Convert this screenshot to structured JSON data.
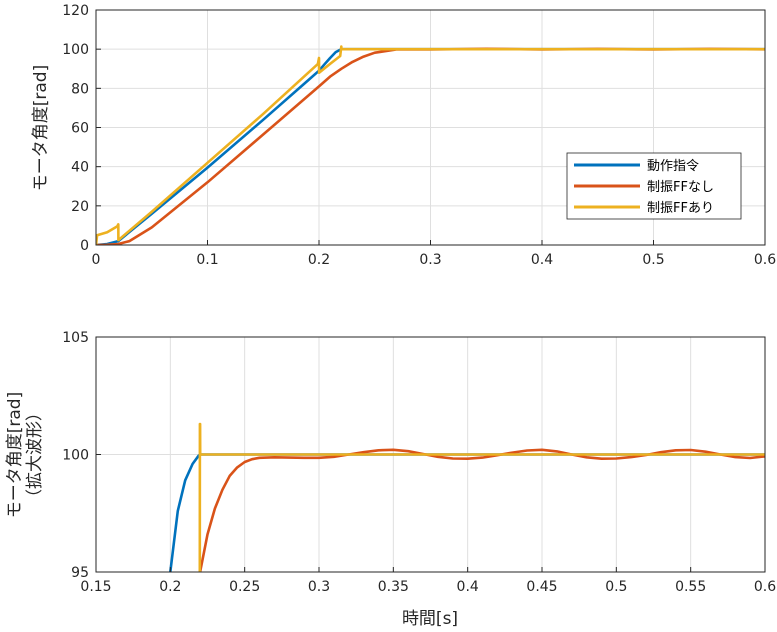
{
  "chart_data": [
    {
      "type": "line",
      "ylabel": "モータ角度[rad]",
      "xlabel": "",
      "xlim": [
        0,
        0.6
      ],
      "ylim": [
        0,
        120
      ],
      "xticks": [
        "0",
        "0.1",
        "0.2",
        "0.3",
        "0.4",
        "0.5",
        "0.6"
      ],
      "yticks": [
        "0",
        "20",
        "40",
        "60",
        "80",
        "100",
        "120"
      ],
      "grid": true,
      "legend_position": "right",
      "series": [
        {
          "name": "動作指令",
          "color": "#0072BD",
          "x": [
            0,
            0.01,
            0.02,
            0.05,
            0.1,
            0.15,
            0.19,
            0.2,
            0.205,
            0.21,
            0.215,
            0.22,
            0.3,
            0.4,
            0.5,
            0.6
          ],
          "y": [
            0,
            0.5,
            2,
            16,
            39.5,
            64,
            84,
            89,
            92.3,
            95.5,
            98.5,
            100,
            100,
            100,
            100,
            100
          ]
        },
        {
          "name": "制振FFなし",
          "color": "#D95319",
          "x": [
            0,
            0.01,
            0.02,
            0.03,
            0.05,
            0.1,
            0.15,
            0.2,
            0.21,
            0.22,
            0.23,
            0.24,
            0.25,
            0.27,
            0.3,
            0.35,
            0.4,
            0.45,
            0.5,
            0.55,
            0.6
          ],
          "y": [
            0,
            0.1,
            0.5,
            2.0,
            9,
            32,
            56.5,
            81,
            86,
            90,
            93.5,
            96.2,
            98.2,
            99.9,
            99.85,
            100.2,
            99.85,
            100.15,
            99.85,
            100.15,
            99.95
          ]
        },
        {
          "name": "制振FFあり",
          "color": "#EDB120",
          "x": [
            0,
            0.001,
            0.01,
            0.019,
            0.02,
            0.0201,
            0.05,
            0.1,
            0.15,
            0.199,
            0.2,
            0.2001,
            0.21,
            0.219,
            0.22,
            0.2201,
            0.3,
            0.4,
            0.5,
            0.6
          ],
          "y": [
            0,
            5,
            6.5,
            9.5,
            10.5,
            2.5,
            17,
            42,
            67,
            92.5,
            95.5,
            88,
            92.5,
            96.5,
            101.3,
            100,
            100,
            100,
            100,
            100
          ]
        }
      ]
    },
    {
      "type": "line",
      "ylabel": "モータ角度[rad]",
      "ylabel2": "（拡大波形）",
      "xlabel": "時間[s]",
      "xlim": [
        0.15,
        0.6
      ],
      "ylim": [
        95,
        105
      ],
      "xticks": [
        "0.15",
        "0.2",
        "0.25",
        "0.3",
        "0.35",
        "0.4",
        "0.45",
        "0.5",
        "0.55",
        "0.6"
      ],
      "yticks": [
        "95",
        "100",
        "105"
      ],
      "grid": true,
      "series": [
        {
          "name": "動作指令",
          "color": "#0072BD",
          "x": [
            0.2,
            0.205,
            0.21,
            0.215,
            0.219,
            0.22,
            0.3,
            0.4,
            0.5,
            0.6
          ],
          "y": [
            95,
            97.6,
            98.9,
            99.6,
            99.95,
            100,
            100,
            100,
            100,
            100
          ]
        },
        {
          "name": "制振FFなし",
          "color": "#D95319",
          "x": [
            0.22,
            0.225,
            0.23,
            0.235,
            0.24,
            0.245,
            0.25,
            0.255,
            0.26,
            0.27,
            0.28,
            0.29,
            0.3,
            0.31,
            0.32,
            0.33,
            0.34,
            0.35,
            0.36,
            0.37,
            0.38,
            0.39,
            0.4,
            0.41,
            0.42,
            0.43,
            0.44,
            0.45,
            0.46,
            0.47,
            0.48,
            0.49,
            0.5,
            0.51,
            0.52,
            0.53,
            0.54,
            0.55,
            0.56,
            0.57,
            0.58,
            0.59,
            0.6
          ],
          "y": [
            95,
            96.6,
            97.7,
            98.5,
            99.1,
            99.45,
            99.68,
            99.8,
            99.86,
            99.88,
            99.87,
            99.86,
            99.86,
            99.9,
            100.0,
            100.1,
            100.18,
            100.2,
            100.14,
            100.02,
            99.9,
            99.83,
            99.82,
            99.87,
            99.97,
            100.08,
            100.17,
            100.2,
            100.13,
            100.0,
            99.88,
            99.82,
            99.83,
            99.89,
            99.98,
            100.1,
            100.18,
            100.19,
            100.12,
            100.0,
            99.89,
            99.85,
            99.92
          ]
        },
        {
          "name": "制振FFあり",
          "color": "#EDB120",
          "x": [
            0.2198,
            0.2199,
            0.22,
            0.2201,
            0.23,
            0.3,
            0.4,
            0.5,
            0.6
          ],
          "y": [
            95,
            101.3,
            101.3,
            100,
            100,
            100,
            100,
            100,
            100
          ]
        }
      ]
    }
  ]
}
